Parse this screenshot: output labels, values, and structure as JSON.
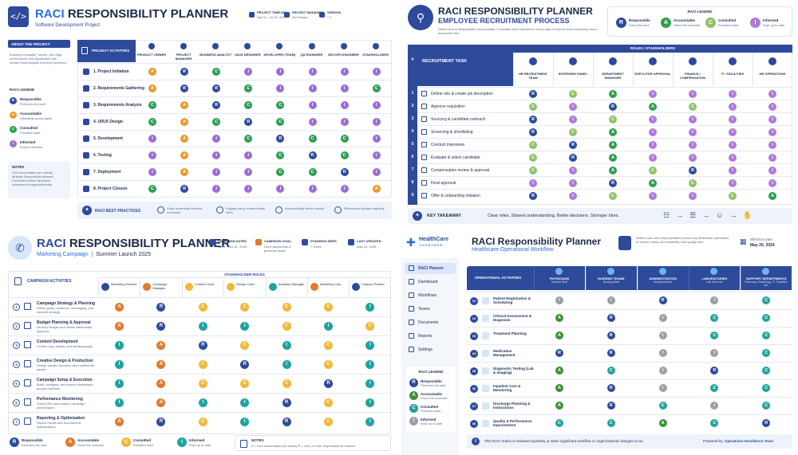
{
  "p1": {
    "title_short": "RACI",
    "title_rest": "RESPONSIBILITY PLANNER",
    "subtitle": "Software Development Project",
    "meta": [
      {
        "label": "PROJECT TIMELINE",
        "value": "May 01 – Jun 30, 2025"
      },
      {
        "label": "PROJECT MANAGER",
        "value": "Alex Morgan"
      },
      {
        "label": "VERSION",
        "value": "1.0"
      }
    ],
    "about_title": "ABOUT THE PROJECT",
    "about_text": "Building a scalable, secure, and high-performance web application with modern technologies and best practices.",
    "legend_title": "RACI LEGEND",
    "legend": [
      {
        "letter": "R",
        "name": "Responsible",
        "desc": "Performs the work"
      },
      {
        "letter": "A",
        "name": "Accountable",
        "desc": "Ultimately accountable"
      },
      {
        "letter": "C",
        "name": "Consulted",
        "desc": "Provides input"
      },
      {
        "letter": "I",
        "name": "Informed",
        "desc": "Keeps informed"
      }
    ],
    "notes_title": "NOTES",
    "notes": [
      "One Accountable per activity",
      "Multiple Responsible allowed",
      "Consulted before decisions",
      "Informed of progress/results"
    ],
    "activities_title": "PROJECT ACTIVITIES",
    "roles": [
      "PRODUCT OWNER",
      "PROJECT MANAGER",
      "BUSINESS ANALYST",
      "UI/UX DESIGNER",
      "DEVELOPER (TEAM)",
      "QA ENGINEER",
      "DEVOPS ENGINEER",
      "STAKEHOLDERS"
    ],
    "rows": [
      {
        "task": "1. Project Initiation",
        "cells": [
          "A",
          "R",
          "C",
          "I",
          "I",
          "I",
          "I",
          "I"
        ]
      },
      {
        "task": "2. Requirements Gathering",
        "cells": [
          "A",
          "R",
          "R",
          "C",
          "I",
          "I",
          "I",
          "C"
        ]
      },
      {
        "task": "3. Requirements Analysis",
        "cells": [
          "C",
          "A",
          "R",
          "C",
          "C",
          "I",
          "I",
          "I"
        ]
      },
      {
        "task": "4. UI/UX Design",
        "cells": [
          "C",
          "A",
          "C",
          "R",
          "C",
          "I",
          "I",
          "I"
        ]
      },
      {
        "task": "5. Development",
        "cells": [
          "I",
          "A",
          "I",
          "C",
          "R",
          "C",
          "C",
          "I"
        ]
      },
      {
        "task": "6. Testing",
        "cells": [
          "I",
          "A",
          "I",
          "I",
          "C",
          "R",
          "C",
          "I"
        ]
      },
      {
        "task": "7. Deployment",
        "cells": [
          "I",
          "A",
          "I",
          "I",
          "C",
          "C",
          "R",
          "I"
        ]
      },
      {
        "task": "8. Project Closure",
        "cells": [
          "C",
          "R",
          "I",
          "I",
          "I",
          "I",
          "I",
          "A"
        ]
      }
    ],
    "practices_title": "RACI BEST PRACTICES",
    "practices": [
      "Clear ownership reduces confusion",
      "Engage early, communicate often",
      "Accountability drives results",
      "Review and update regularly"
    ]
  },
  "p2": {
    "title": "RACI RESPONSIBILITY PLANNER",
    "subtitle": "EMPLOYEE RECRUITMENT PROCESS",
    "desc": "Define who is Responsible, Accountable, Consulted and Informed for every step to ensure clear ownership and a successful hire.",
    "legend_title": "RACI LEGEND",
    "legend": [
      {
        "letter": "R",
        "name": "Responsible",
        "desc": "Does the work"
      },
      {
        "letter": "A",
        "name": "Accountable",
        "desc": "Owns the outcome"
      },
      {
        "letter": "C",
        "name": "Consulted",
        "desc": "Provides input"
      },
      {
        "letter": "I",
        "name": "Informed",
        "desc": "Kept up to date"
      }
    ],
    "roles_title": "ROLES / STAKEHOLDERS",
    "task_header": "RECRUITMENT TASK",
    "num_header": "#",
    "roles": [
      "HR RECRUITMENT TEAM",
      "INTERVIEW PANEL",
      "DEPARTMENT MANAGER",
      "EXECUTIVE APPROVAL",
      "FINANCE / COMPENSATION",
      "IT / FACILITIES",
      "HR OPERATIONS"
    ],
    "rows": [
      {
        "n": "1",
        "task": "Define role & create job description",
        "cells": [
          "R",
          "C",
          "A",
          "I",
          "I",
          "I",
          "I"
        ]
      },
      {
        "n": "2",
        "task": "Approve requisition",
        "cells": [
          "C",
          "I",
          "R",
          "A",
          "C",
          "I",
          "I"
        ]
      },
      {
        "n": "3",
        "task": "Sourcing & candidate outreach",
        "cells": [
          "R",
          "I",
          "C",
          "I",
          "I",
          "I",
          "I"
        ]
      },
      {
        "n": "4",
        "task": "Screening & shortlisting",
        "cells": [
          "R",
          "C",
          "A",
          "I",
          "I",
          "I",
          "I"
        ]
      },
      {
        "n": "5",
        "task": "Conduct interviews",
        "cells": [
          "C",
          "R",
          "A",
          "I",
          "I",
          "I",
          "I"
        ]
      },
      {
        "n": "6",
        "task": "Evaluate & select candidate",
        "cells": [
          "C",
          "R",
          "A",
          "I",
          "I",
          "I",
          "I"
        ]
      },
      {
        "n": "7",
        "task": "Compensation review & approval",
        "cells": [
          "C",
          "I",
          "A",
          "C",
          "R",
          "I",
          "I"
        ]
      },
      {
        "n": "8",
        "task": "Final approval",
        "cells": [
          "I",
          "I",
          "R",
          "A",
          "C",
          "I",
          "I"
        ]
      },
      {
        "n": "9",
        "task": "Offer & onboarding initiation",
        "cells": [
          "R",
          "I",
          "C",
          "I",
          "I",
          "C",
          "A"
        ]
      }
    ],
    "takeaway_title": "KEY TAKEAWAY",
    "takeaway": "Clear roles. Shared understanding. Better decisions. Stronger hires."
  },
  "p3": {
    "title_short": "RACI",
    "title_rest": "RESPONSIBILITY PLANNER",
    "subtitle_a": "Marketing Campaign",
    "subtitle_b": "Summer Launch 2025",
    "meta": [
      {
        "label": "CAMPAIGN DATES",
        "value": "Jun 1 – Jul 31, 2025"
      },
      {
        "label": "CAMPAIGN GOAL",
        "value": "Drive awareness & generate leads"
      },
      {
        "label": "STAKEHOLDERS",
        "value": "7 Roles"
      },
      {
        "label": "LAST UPDATED",
        "value": "May 15, 2025"
      }
    ],
    "activities_title": "CAMPAIGN ACTIVITIES",
    "roles_title": "STAKEHOLDER ROLES",
    "roles": [
      "Marketing Director",
      "Campaign Manager",
      "Content Lead",
      "Design Lead",
      "Analytics Manager",
      "Marketing Ops",
      "Finance Partner"
    ],
    "rows": [
      {
        "n": "1",
        "task": "Campaign Strategy & Planning",
        "desc": "Define goals, audience, messaging, and channel strategy",
        "cells": [
          "A",
          "R",
          "C",
          "C",
          "C",
          "C",
          "I"
        ]
      },
      {
        "n": "2",
        "task": "Budget Planning & Approval",
        "desc": "Develop budget and obtain stakeholder approval",
        "cells": [
          "A",
          "R",
          "I",
          "I",
          "C",
          "I",
          "C"
        ]
      },
      {
        "n": "3",
        "task": "Content Development",
        "desc": "Create copy, assets, and landing pages",
        "cells": [
          "I",
          "A",
          "R",
          "C",
          "I",
          "C",
          "I"
        ]
      },
      {
        "n": "4",
        "task": "Creative Design & Production",
        "desc": "Design visuals, banners, and multimedia assets",
        "cells": [
          "I",
          "A",
          "C",
          "R",
          "I",
          "C",
          "I"
        ]
      },
      {
        "n": "5",
        "task": "Campaign Setup & Execution",
        "desc": "Build, configure, and launch campaigns across channels",
        "cells": [
          "I",
          "A",
          "C",
          "C",
          "C",
          "R",
          "I"
        ]
      },
      {
        "n": "6",
        "task": "Performance Monitoring",
        "desc": "Track KPIs and analyze campaign performance",
        "cells": [
          "I",
          "A",
          "I",
          "I",
          "R",
          "C",
          "I"
        ]
      },
      {
        "n": "7",
        "task": "Reporting & Optimization",
        "desc": "Report results and recommend optimizations",
        "cells": [
          "A",
          "R",
          "C",
          "I",
          "R",
          "C",
          "I"
        ]
      }
    ],
    "legend": [
      {
        "letter": "R",
        "name": "Responsible",
        "desc": "Executes the task"
      },
      {
        "letter": "A",
        "name": "Accountable",
        "desc": "Owns the outcome"
      },
      {
        "letter": "C",
        "name": "Consulted",
        "desc": "Provides input"
      },
      {
        "letter": "I",
        "name": "Informed",
        "desc": "Kept up to date"
      }
    ],
    "notes_title": "NOTES",
    "notes": "A = One accountable per activity   R = One or more responsible as needed"
  },
  "p4": {
    "brand_a": "HealthCare",
    "brand_b": "TOGETHER",
    "title": "RACI Responsibility Planner",
    "subtitle": "Healthcare Operational Workflow",
    "desc": "Define roles and responsibilities across key healthcare operations to ensure clarity, accountability, and quality care.",
    "date_label": "Effective Date",
    "date_value": "May 20, 2024",
    "nav": [
      "RACI Planner",
      "Dashboard",
      "Workflows",
      "Teams",
      "Documents",
      "Reports",
      "Settings"
    ],
    "legend_title": "RACI LEGEND",
    "legend": [
      {
        "letter": "R",
        "name": "Responsible",
        "desc": "Performs the task"
      },
      {
        "letter": "A",
        "name": "Accountable",
        "desc": "Owns the outcome"
      },
      {
        "letter": "C",
        "name": "Consulted",
        "desc": "Provides input"
      },
      {
        "letter": "I",
        "name": "Informed",
        "desc": "Kept up to date"
      }
    ],
    "activities_title": "OPERATIONAL ACTIVITIES",
    "roles": [
      {
        "name": "PHYSICIANS",
        "sub": "Medical Staff"
      },
      {
        "name": "NURSING TEAMS",
        "sub": "Nursing Staff"
      },
      {
        "name": "ADMINISTRATION",
        "sub": "Hospital Admin"
      },
      {
        "name": "LABORATORIES",
        "sub": "Lab Services"
      },
      {
        "name": "SUPPORT DEPARTMENTS",
        "sub": "Pharmacy, Radiology, IT, Facilities, etc."
      }
    ],
    "rows": [
      {
        "n": "01",
        "task": "Patient Registration & Scheduling",
        "cells": [
          "I",
          "I",
          "R",
          "I",
          "C"
        ]
      },
      {
        "n": "02",
        "task": "Clinical Assessment & Diagnosis",
        "cells": [
          "A",
          "R",
          "I",
          "C",
          "C"
        ]
      },
      {
        "n": "03",
        "task": "Treatment Planning",
        "cells": [
          "A",
          "R",
          "I",
          "C",
          "C"
        ]
      },
      {
        "n": "04",
        "task": "Medication Management",
        "cells": [
          "R",
          "R",
          "I",
          "I",
          "C"
        ]
      },
      {
        "n": "05",
        "task": "Diagnostic Testing (Lab & Imaging)",
        "cells": [
          "A",
          "C",
          "I",
          "R",
          "C"
        ]
      },
      {
        "n": "06",
        "task": "Inpatient Care & Monitoring",
        "cells": [
          "A",
          "R",
          "I",
          "C",
          "C"
        ]
      },
      {
        "n": "07",
        "task": "Discharge Planning & Instructions",
        "cells": [
          "A",
          "R",
          "C",
          "I",
          "C"
        ]
      },
      {
        "n": "08",
        "task": "Quality & Performance Improvement",
        "cells": [
          "C",
          "C",
          "A",
          "C",
          "R"
        ]
      }
    ],
    "footer": "This RACI matrix is reviewed quarterly or when significant workflow or organizational changes occur.",
    "prepared_label": "Prepared by:",
    "prepared_value": "Operations Excellence Team"
  }
}
